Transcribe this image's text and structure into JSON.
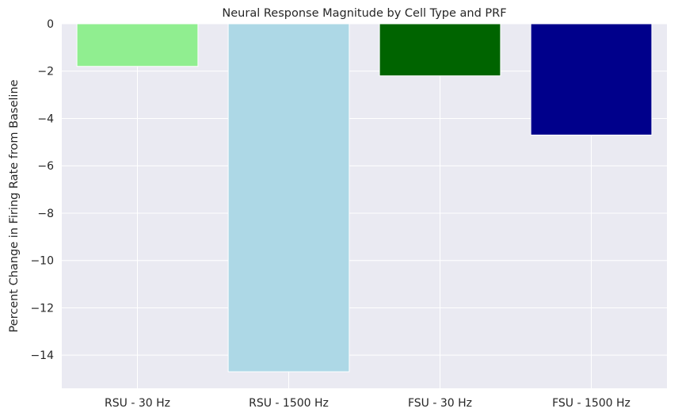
{
  "chart_data": {
    "type": "bar",
    "title": "Neural Response Magnitude by Cell Type and PRF",
    "xlabel": "",
    "ylabel": "Percent Change in Firing Rate from Baseline",
    "categories": [
      "RSU - 30 Hz",
      "RSU - 1500 Hz",
      "FSU - 30 Hz",
      "FSU - 1500 Hz"
    ],
    "values": [
      -1.8,
      -14.7,
      -2.2,
      -4.7
    ],
    "colors": [
      "#90ee90",
      "#add8e6",
      "#006400",
      "#00008b"
    ],
    "ylim": [
      -15.4,
      0
    ],
    "yticks": [
      0,
      -2,
      -4,
      -6,
      -8,
      -10,
      -12,
      -14
    ],
    "ytick_labels": [
      "0",
      "−2",
      "−4",
      "−6",
      "−8",
      "−10",
      "−12",
      "−14"
    ],
    "grid": true,
    "legend": "none",
    "style": {
      "background": "#eaeaf2",
      "grid_color": "#ffffff"
    }
  }
}
